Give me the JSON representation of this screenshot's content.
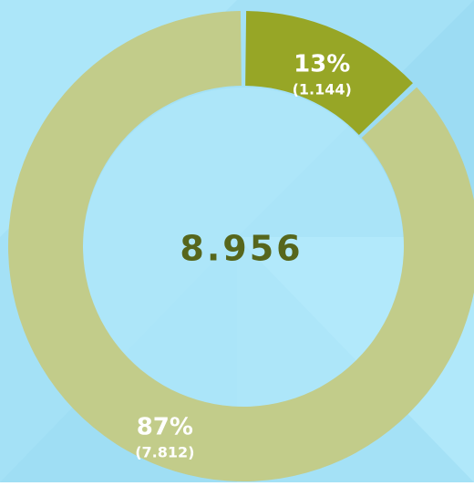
{
  "chart_data": {
    "type": "donut",
    "values": [
      13,
      87
    ],
    "value_labels": [
      "13%",
      "87%"
    ],
    "amounts": [
      {
        "value": 1144,
        "label": "(1.144)"
      },
      {
        "value": 7812,
        "label": "(7.812)"
      }
    ],
    "total": {
      "value": 8956,
      "label": "8.956"
    },
    "colors": [
      "#97a626",
      "#c2cc8a"
    ]
  }
}
